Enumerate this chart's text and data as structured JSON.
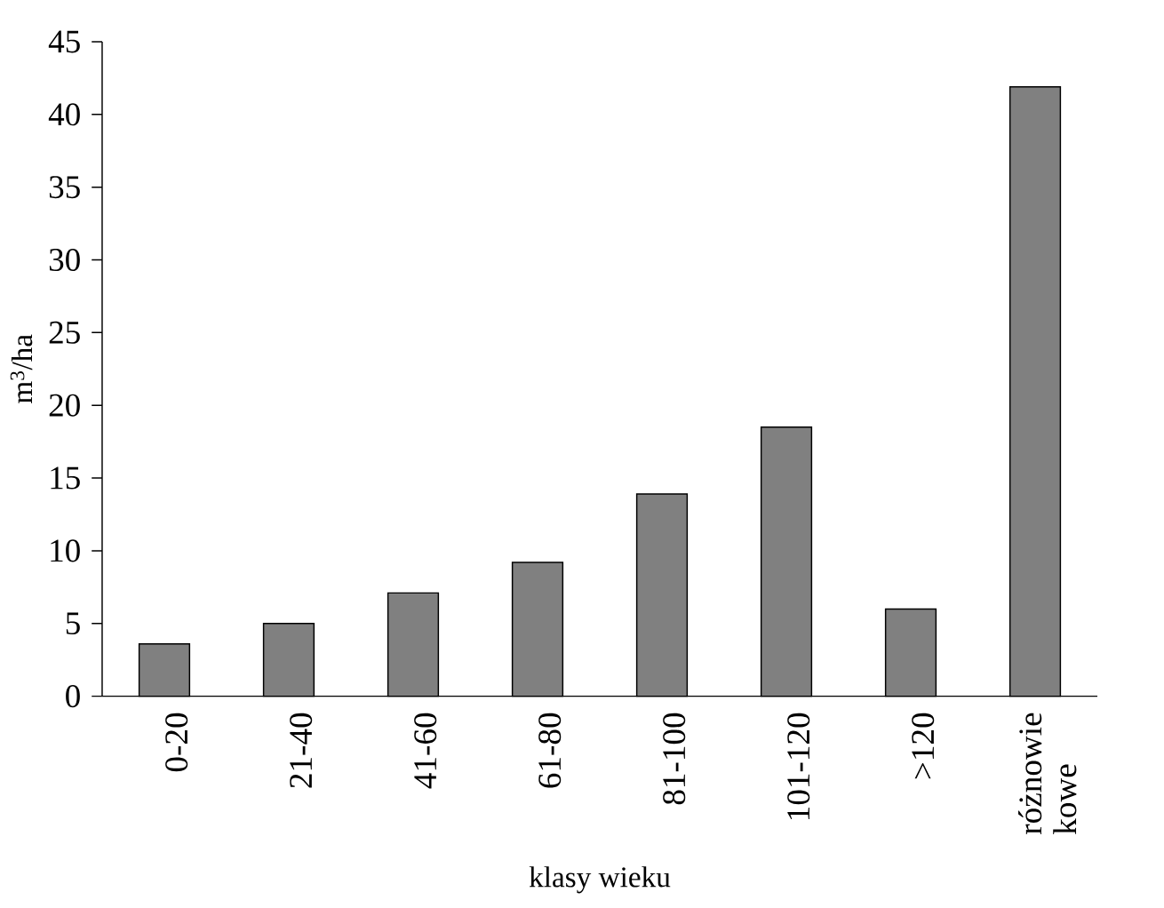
{
  "chart_data": {
    "type": "bar",
    "xlabel": "klasy wieku",
    "ylabel": "m$^{3}$/ha",
    "categories": [
      "0-20",
      "21-40",
      "41-60",
      "61-80",
      "81-100",
      "101-120",
      ">120",
      "różnowie kowe"
    ],
    "values": [
      3.6,
      5.0,
      7.1,
      9.2,
      13.9,
      18.5,
      6.0,
      41.9
    ],
    "color": "#808080",
    "ylim": [
      0,
      45
    ],
    "yticks": [
      0,
      5,
      10,
      15,
      20,
      25,
      30,
      35,
      40,
      45
    ],
    "grid": false
  }
}
